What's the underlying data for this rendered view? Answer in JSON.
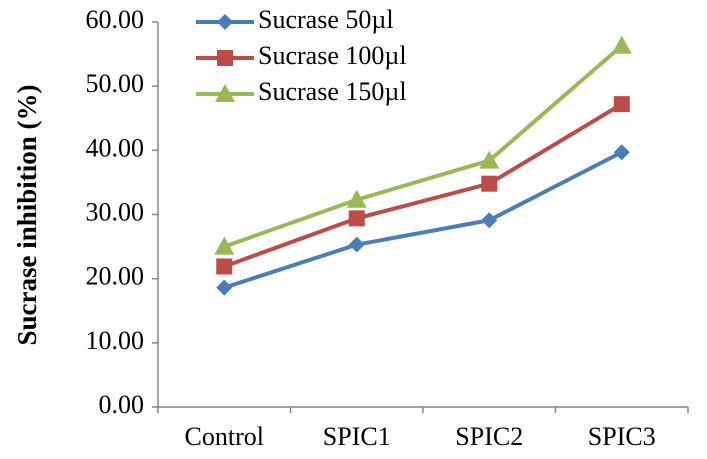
{
  "chart_data": {
    "type": "line",
    "categories": [
      "Control",
      "SPIC1",
      "SPIC2",
      "SPIC3"
    ],
    "series": [
      {
        "name": "Sucrase  50µl",
        "values": [
          18.6,
          25.3,
          29.1,
          39.7
        ],
        "color": "#4a7ebb",
        "marker": "diamond"
      },
      {
        "name": "Sucrase  100µl",
        "values": [
          21.9,
          29.4,
          34.8,
          47.2
        ],
        "color": "#be4b48",
        "marker": "square"
      },
      {
        "name": "Sucrase  150µl",
        "values": [
          25.0,
          32.3,
          38.4,
          56.3
        ],
        "color": "#98b954",
        "marker": "triangle"
      }
    ],
    "ylabel": "Sucrase inhibition (%)",
    "xlabel": "",
    "ylim": [
      0,
      60
    ],
    "yticks": [
      "0.00",
      "10.00",
      "20.00",
      "30.00",
      "40.00",
      "50.00",
      "60.00"
    ],
    "grid": false,
    "legend_position": "top-left"
  }
}
